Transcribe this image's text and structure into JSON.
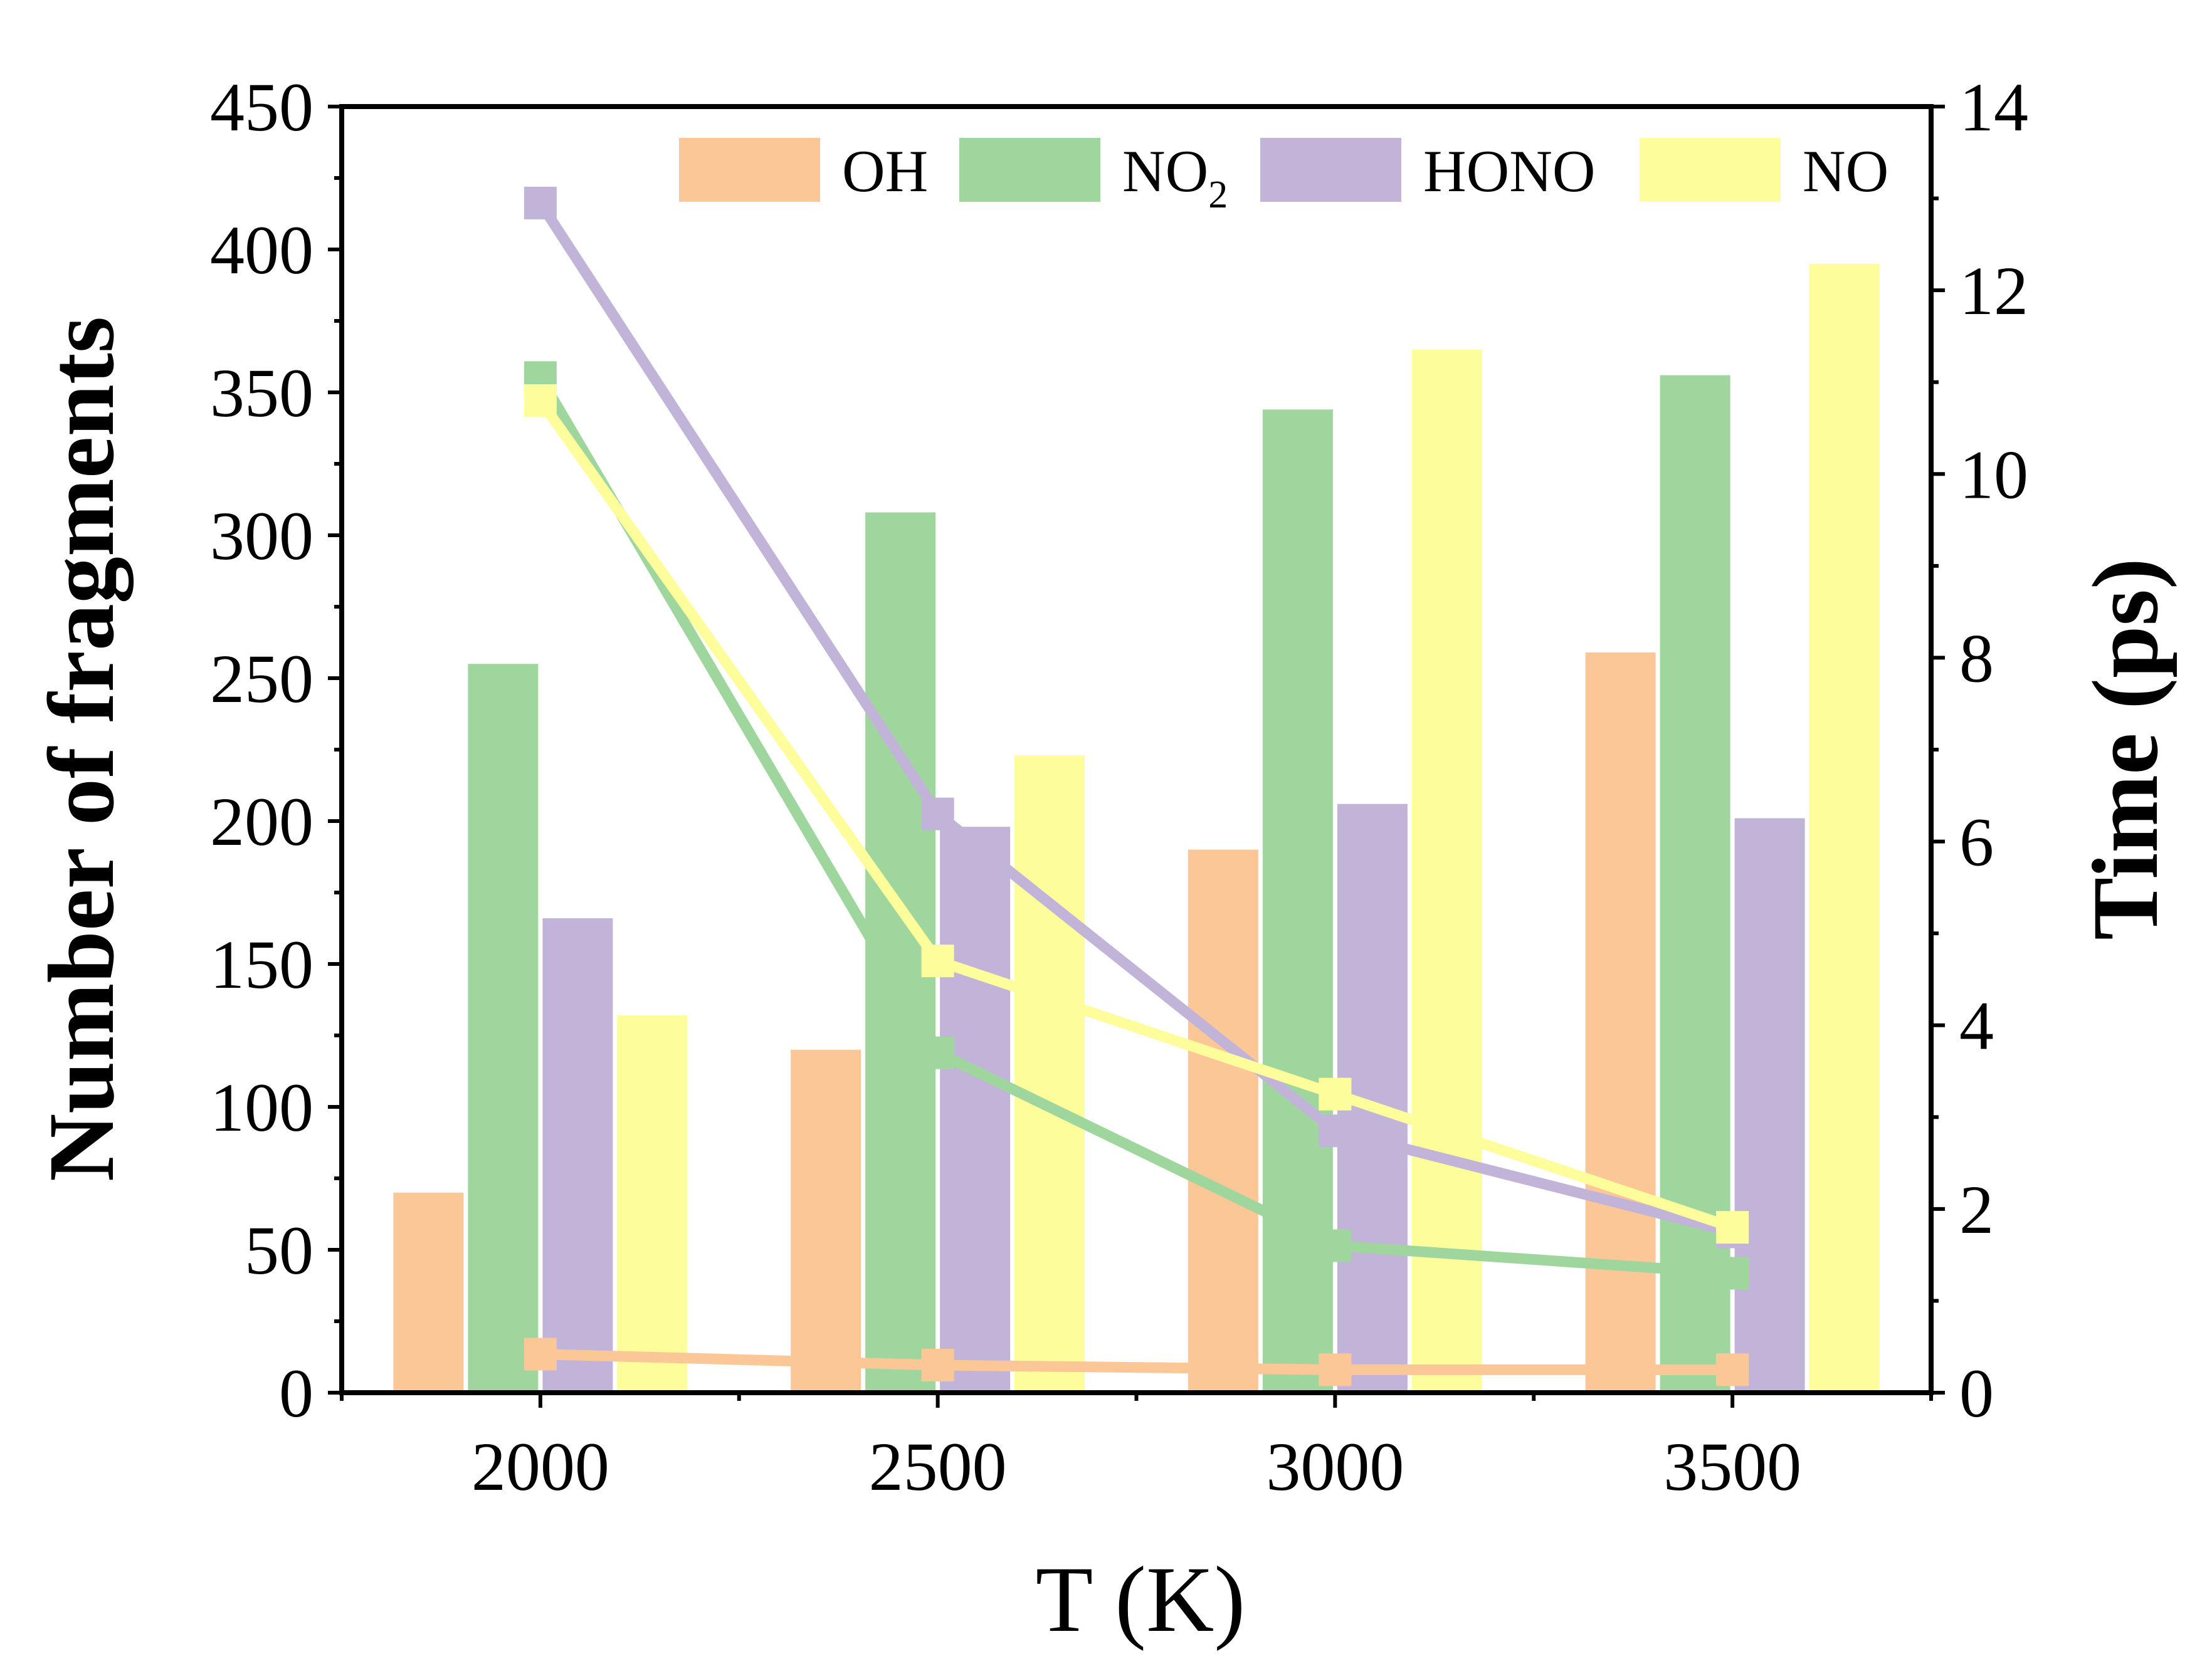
{
  "chart_data": {
    "type": "bar+line",
    "x_categories": [
      2000,
      2500,
      3000,
      3500
    ],
    "xlabel": "T (K)",
    "ylabel_left": "Number of fragments",
    "ylabel_right": "Time (ps)",
    "ylim_left": [
      0,
      450
    ],
    "ylim_right": [
      0,
      14
    ],
    "xlim": [
      1750,
      3750
    ],
    "yticks_left": [
      0,
      50,
      100,
      150,
      200,
      250,
      300,
      350,
      400,
      450
    ],
    "yticks_right": [
      0,
      2,
      4,
      6,
      8,
      10,
      12,
      14
    ],
    "xticks": [
      2000,
      2500,
      3000,
      3500
    ],
    "bar_series": [
      {
        "name": "OH",
        "color": "#fbc797",
        "values": [
          70,
          120,
          190,
          259
        ]
      },
      {
        "name": "NO2",
        "color": "#9ed69d",
        "values": [
          255,
          308,
          344,
          356
        ]
      },
      {
        "name": "HONO",
        "color": "#c2b4d8",
        "values": [
          166,
          198,
          206,
          201
        ]
      },
      {
        "name": "NO",
        "color": "#fdfd9b",
        "values": [
          132,
          223,
          365,
          395
        ]
      }
    ],
    "line_series": [
      {
        "name": "HONO",
        "color": "#c2b4d8",
        "values": [
          12.95,
          6.3,
          2.85,
          1.75
        ]
      },
      {
        "name": "NO2",
        "color": "#9ed69d",
        "values": [
          11.05,
          3.7,
          1.6,
          1.3
        ]
      },
      {
        "name": "NO",
        "color": "#fdfd9b",
        "values": [
          10.8,
          4.7,
          3.25,
          1.8
        ]
      },
      {
        "name": "OH",
        "color": "#fbc797",
        "values": [
          0.42,
          0.3,
          0.25,
          0.25
        ]
      }
    ],
    "legend": {
      "placement": "top-right",
      "entries": [
        {
          "label": "OH",
          "base": "OH",
          "sub": "",
          "color": "#fbc797"
        },
        {
          "label": "NO2",
          "base": "NO",
          "sub": "2",
          "color": "#9ed69d"
        },
        {
          "label": "HONO",
          "base": "HONO",
          "sub": "",
          "color": "#c2b4d8"
        },
        {
          "label": "NO",
          "base": "NO",
          "sub": "",
          "color": "#fdfd9b"
        }
      ]
    }
  }
}
